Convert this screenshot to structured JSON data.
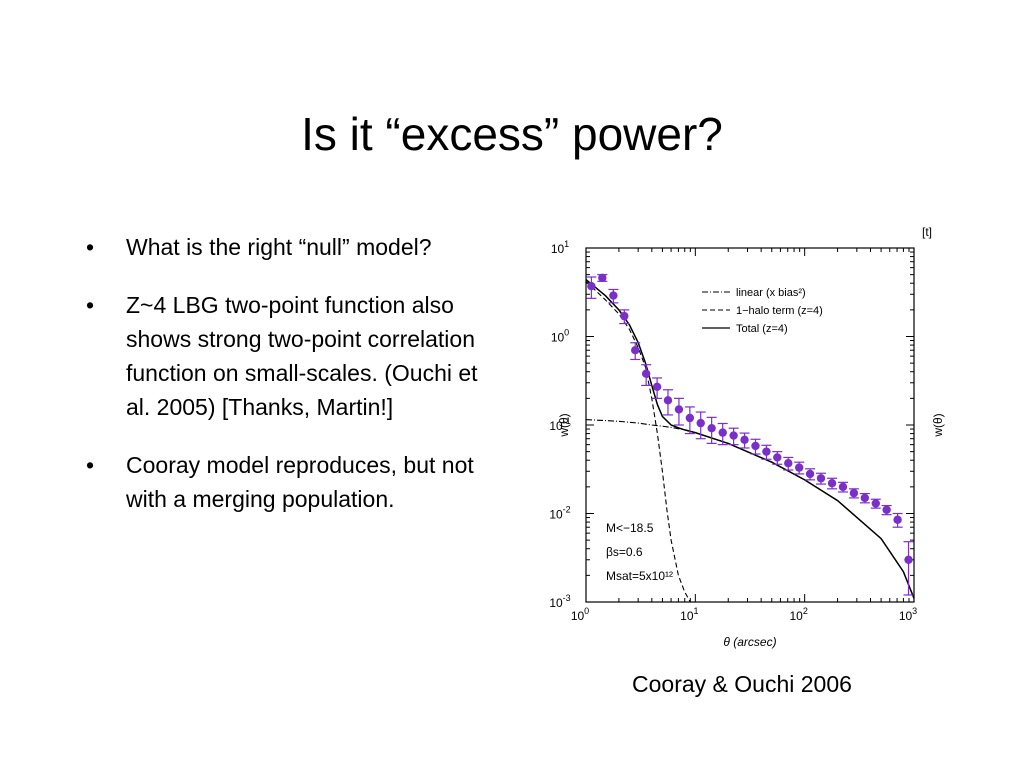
{
  "slide": {
    "title": "Is it “excess” power?",
    "bullets": [
      {
        "marker": "•",
        "text": "What is the right “null” model?"
      },
      {
        "marker": "•",
        "text": "Z~4 LBG two-point function also shows strong two-point correlation function on small-scales. (Ouchi et al. 2005) [Thanks, Martin!]"
      },
      {
        "marker": "•",
        "text": "Cooray model reproduces, but not with a merging population."
      }
    ],
    "caption": "Cooray & Ouchi 2006"
  },
  "chart_data": {
    "type": "scatter",
    "corner_label": "[t]",
    "xlabel": "θ  (arcsec)",
    "ylabel": "w(θ)",
    "ylabel_right": "w(θ)",
    "xscale": "log",
    "yscale": "log",
    "xlim": [
      1,
      1000
    ],
    "ylim": [
      0.001,
      10
    ],
    "x_ticks": [
      {
        "value": 1,
        "base": "10",
        "exp": "0"
      },
      {
        "value": 10,
        "base": "10",
        "exp": "1"
      },
      {
        "value": 100,
        "base": "10",
        "exp": "2"
      },
      {
        "value": 1000,
        "base": "10",
        "exp": "3"
      }
    ],
    "y_ticks": [
      {
        "value": 0.001,
        "base": "10",
        "exp": "-3"
      },
      {
        "value": 0.01,
        "base": "10",
        "exp": "-2"
      },
      {
        "value": 0.1,
        "base": "10",
        "exp": "-1"
      },
      {
        "value": 1,
        "base": "10",
        "exp": "0"
      },
      {
        "value": 10,
        "base": "10",
        "exp": "1"
      }
    ],
    "legend_position": "top-right",
    "legend": [
      {
        "label": "linear (x bias²)",
        "style": "dashdot"
      },
      {
        "label": "1−halo term (z=4)",
        "style": "dashed"
      },
      {
        "label": "Total (z=4)",
        "style": "solid"
      }
    ],
    "annotations": [
      "M<−18.5",
      "βs=0.6",
      "Msat=5x10¹²"
    ],
    "colors": {
      "points": "#7b2fc9",
      "lines": "#000000"
    },
    "series": [
      {
        "name": "linear (x bias²)",
        "style": "dashdot",
        "x": [
          1,
          2,
          3,
          4,
          5,
          6,
          8,
          10,
          20,
          50,
          100,
          200,
          500,
          800,
          1000
        ],
        "y": [
          0.115,
          0.11,
          0.105,
          0.1,
          0.097,
          0.094,
          0.088,
          0.082,
          0.062,
          0.038,
          0.024,
          0.014,
          0.0052,
          0.0022,
          0.0011
        ]
      },
      {
        "name": "1−halo term (z=4)",
        "style": "dashed",
        "x": [
          1,
          1.5,
          2,
          2.5,
          3,
          3.5,
          4,
          4.5,
          5,
          5.5,
          6,
          7,
          8,
          9
        ],
        "y": [
          4.2,
          2.6,
          1.8,
          1.2,
          0.75,
          0.45,
          0.2,
          0.08,
          0.03,
          0.011,
          0.005,
          0.002,
          0.0013,
          0.001
        ]
      },
      {
        "name": "Total (z=4)",
        "style": "solid",
        "x": [
          1,
          1.5,
          2,
          2.5,
          3,
          3.5,
          4,
          4.5,
          5,
          6,
          7,
          8,
          10,
          20,
          50,
          100,
          200,
          500,
          800,
          1000
        ],
        "y": [
          4.4,
          2.9,
          2.0,
          1.35,
          0.85,
          0.5,
          0.28,
          0.17,
          0.125,
          0.1,
          0.093,
          0.088,
          0.082,
          0.062,
          0.038,
          0.024,
          0.014,
          0.0052,
          0.0022,
          0.0011
        ]
      }
    ],
    "points": {
      "x": [
        1.12,
        1.41,
        1.78,
        2.24,
        2.82,
        3.55,
        4.47,
        5.62,
        7.08,
        8.91,
        11.2,
        14.1,
        17.8,
        22.4,
        28.2,
        35.5,
        44.7,
        56.2,
        70.8,
        89.1,
        112,
        141,
        178,
        224,
        282,
        355,
        447,
        562,
        708,
        891
      ],
      "y": [
        3.7,
        4.6,
        2.9,
        1.7,
        0.7,
        0.38,
        0.27,
        0.19,
        0.15,
        0.12,
        0.105,
        0.092,
        0.082,
        0.076,
        0.068,
        0.058,
        0.05,
        0.043,
        0.037,
        0.033,
        0.028,
        0.025,
        0.022,
        0.02,
        0.017,
        0.015,
        0.013,
        0.011,
        0.0085,
        0.003
      ],
      "err_low": [
        1.0,
        0.4,
        0.5,
        0.3,
        0.15,
        0.1,
        0.07,
        0.06,
        0.05,
        0.04,
        0.035,
        0.03,
        0.022,
        0.016,
        0.013,
        0.011,
        0.009,
        0.007,
        0.006,
        0.005,
        0.004,
        0.0035,
        0.003,
        0.0025,
        0.002,
        0.0018,
        0.0015,
        0.0013,
        0.0015,
        0.0018
      ],
      "err_high": [
        1.0,
        0.4,
        0.5,
        0.3,
        0.15,
        0.1,
        0.07,
        0.06,
        0.05,
        0.04,
        0.035,
        0.03,
        0.022,
        0.016,
        0.013,
        0.011,
        0.009,
        0.007,
        0.006,
        0.005,
        0.004,
        0.0035,
        0.003,
        0.0025,
        0.002,
        0.0018,
        0.0015,
        0.0013,
        0.0015,
        0.0018
      ]
    }
  }
}
